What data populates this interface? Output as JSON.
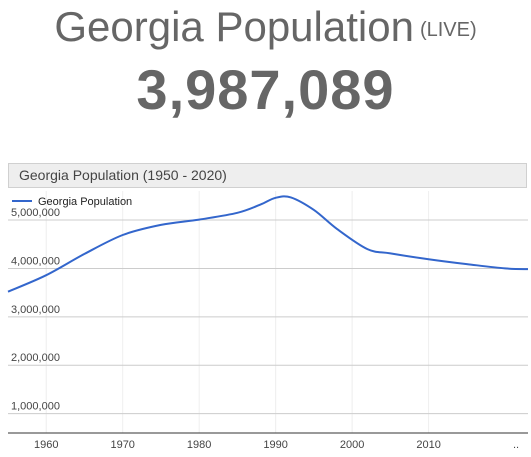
{
  "header": {
    "title": "Georgia Population",
    "live_label": "(LIVE)",
    "live_count": "3,987,089"
  },
  "chart_data": {
    "type": "line",
    "title": "Georgia Population (1950 - 2020)",
    "xlabel": "",
    "ylabel": "",
    "x_ticks": [
      "1960",
      "1970",
      "1980",
      "1990",
      "2000",
      "2010",
      ".."
    ],
    "y_ticks": [
      "1,000,000",
      "2,000,000",
      "3,000,000",
      "4,000,000",
      "5,000,000"
    ],
    "xlim": [
      1955,
      2023
    ],
    "ylim": [
      600000,
      5600000
    ],
    "grid": true,
    "legend_position": "top-left",
    "series": [
      {
        "name": "Georgia Population",
        "color": "#3366cc",
        "points": [
          [
            1955,
            3520000
          ],
          [
            1960,
            3860000
          ],
          [
            1965,
            4300000
          ],
          [
            1970,
            4690000
          ],
          [
            1975,
            4900000
          ],
          [
            1980,
            5010000
          ],
          [
            1985,
            5150000
          ],
          [
            1988,
            5320000
          ],
          [
            1990,
            5460000
          ],
          [
            1992,
            5467000
          ],
          [
            1995,
            5210000
          ],
          [
            1998,
            4820000
          ],
          [
            2002,
            4400000
          ],
          [
            2005,
            4310000
          ],
          [
            2010,
            4190000
          ],
          [
            2015,
            4090000
          ],
          [
            2020,
            4000000
          ],
          [
            2023,
            3987089
          ]
        ]
      }
    ]
  }
}
